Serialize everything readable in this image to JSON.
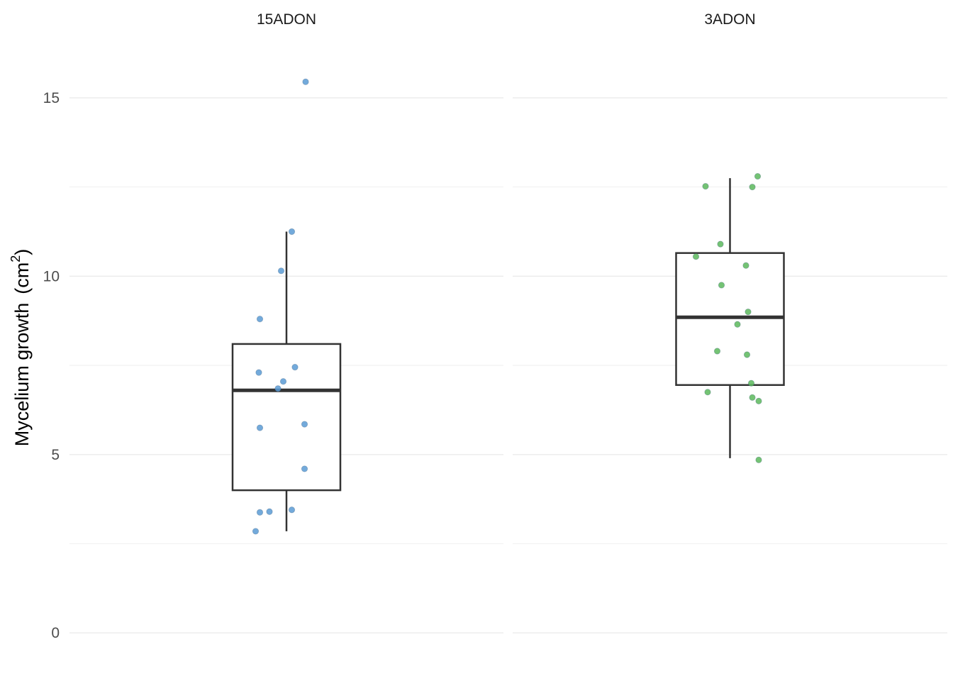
{
  "chart_data": {
    "type": "box",
    "ylabel": "Mycelium growth",
    "ylabel_unit_base": "cm",
    "ylabel_unit_sup": "2",
    "ylim": [
      0,
      16
    ],
    "yticks": [
      0,
      5,
      10,
      15
    ],
    "grid": true,
    "legend": "none",
    "facets": [
      {
        "name": "15ADON",
        "color": "#5b9bd5",
        "box": {
          "lower_whisker": 2.85,
          "q1": 4.0,
          "median": 6.8,
          "q3": 8.1,
          "upper_whisker": 11.25
        },
        "points": [
          {
            "x": 0.18,
            "y": 15.45
          },
          {
            "x": 0.05,
            "y": 11.25
          },
          {
            "x": -0.05,
            "y": 10.15
          },
          {
            "x": -0.25,
            "y": 8.8
          },
          {
            "x": 0.08,
            "y": 7.45
          },
          {
            "x": -0.26,
            "y": 7.3
          },
          {
            "x": -0.03,
            "y": 7.05
          },
          {
            "x": -0.08,
            "y": 6.85
          },
          {
            "x": 0.17,
            "y": 5.85
          },
          {
            "x": -0.25,
            "y": 5.75
          },
          {
            "x": 0.17,
            "y": 4.6
          },
          {
            "x": 0.05,
            "y": 3.45
          },
          {
            "x": -0.16,
            "y": 3.4
          },
          {
            "x": -0.25,
            "y": 3.38
          },
          {
            "x": -0.29,
            "y": 2.85
          }
        ]
      },
      {
        "name": "3ADON",
        "color": "#5cb85c",
        "box": {
          "lower_whisker": 4.9,
          "q1": 6.95,
          "median": 8.85,
          "q3": 10.65,
          "upper_whisker": 12.75
        },
        "points": [
          {
            "x": 0.26,
            "y": 12.8
          },
          {
            "x": -0.23,
            "y": 12.52
          },
          {
            "x": 0.21,
            "y": 12.5
          },
          {
            "x": -0.09,
            "y": 10.9
          },
          {
            "x": -0.32,
            "y": 10.55
          },
          {
            "x": 0.15,
            "y": 10.3
          },
          {
            "x": -0.08,
            "y": 9.75
          },
          {
            "x": 0.17,
            "y": 9.0
          },
          {
            "x": 0.07,
            "y": 8.65
          },
          {
            "x": -0.12,
            "y": 7.9
          },
          {
            "x": 0.16,
            "y": 7.8
          },
          {
            "x": 0.2,
            "y": 7.0
          },
          {
            "x": -0.21,
            "y": 6.75
          },
          {
            "x": 0.21,
            "y": 6.6
          },
          {
            "x": 0.27,
            "y": 6.5
          },
          {
            "x": 0.27,
            "y": 4.85
          }
        ]
      }
    ]
  }
}
